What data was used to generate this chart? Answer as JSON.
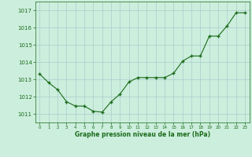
{
  "x": [
    0,
    1,
    2,
    3,
    4,
    5,
    6,
    7,
    8,
    9,
    10,
    11,
    12,
    13,
    14,
    15,
    16,
    17,
    18,
    19,
    20,
    21,
    22,
    23
  ],
  "y": [
    1013.3,
    1012.8,
    1012.4,
    1011.7,
    1011.45,
    1011.45,
    1011.15,
    1011.1,
    1011.7,
    1012.15,
    1012.85,
    1013.1,
    1013.1,
    1013.1,
    1013.1,
    1013.35,
    1014.05,
    1014.35,
    1014.35,
    1015.5,
    1015.5,
    1016.1,
    1016.85,
    1016.85
  ],
  "line_color": "#1a6b1a",
  "marker_color": "#1a6b1a",
  "bg_color": "#cceedd",
  "grid_color": "#aacccc",
  "xlabel": "Graphe pression niveau de la mer (hPa)",
  "xlabel_color": "#1a6b1a",
  "tick_color": "#1a6b1a",
  "yticks": [
    1011,
    1012,
    1013,
    1014,
    1015,
    1016,
    1017
  ],
  "xticks": [
    0,
    1,
    2,
    3,
    4,
    5,
    6,
    7,
    8,
    9,
    10,
    11,
    12,
    13,
    14,
    15,
    16,
    17,
    18,
    19,
    20,
    21,
    22,
    23
  ],
  "ylim": [
    1010.5,
    1017.5
  ],
  "xlim": [
    -0.5,
    23.5
  ],
  "figsize": [
    3.2,
    2.0
  ],
  "dpi": 100
}
